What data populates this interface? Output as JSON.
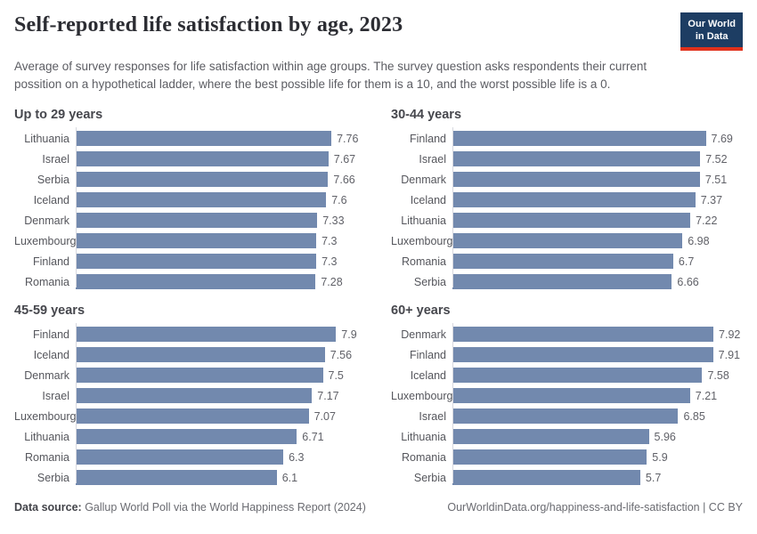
{
  "header": {
    "title": "Self-reported life satisfaction by age, 2023",
    "subtitle": "Average of survey responses for life satisfaction within age groups. The survey question asks respondents their current possition on a hypothetical ladder, where the best possible life for them is a 10, and the worst possible life is a 0.",
    "logo": {
      "line1": "Our World",
      "line2": "in Data"
    }
  },
  "chart_data": [
    {
      "type": "bar",
      "title": "Up to 29 years",
      "categories": [
        "Lithuania",
        "Israel",
        "Serbia",
        "Iceland",
        "Denmark",
        "Luxembourg",
        "Finland",
        "Romania"
      ],
      "values": [
        7.76,
        7.67,
        7.66,
        7.6,
        7.33,
        7.3,
        7.3,
        7.28
      ],
      "xlim": [
        0,
        8
      ],
      "color": "#7289ae",
      "orientation": "horizontal",
      "value_labels": true
    },
    {
      "type": "bar",
      "title": "30-44 years",
      "categories": [
        "Finland",
        "Israel",
        "Denmark",
        "Iceland",
        "Lithuania",
        "Luxembourg",
        "Romania",
        "Serbia"
      ],
      "values": [
        7.69,
        7.52,
        7.51,
        7.37,
        7.22,
        6.98,
        6.7,
        6.66
      ],
      "xlim": [
        0,
        8
      ],
      "color": "#7289ae",
      "orientation": "horizontal",
      "value_labels": true
    },
    {
      "type": "bar",
      "title": "45-59 years",
      "categories": [
        "Finland",
        "Iceland",
        "Denmark",
        "Israel",
        "Luxembourg",
        "Lithuania",
        "Romania",
        "Serbia"
      ],
      "values": [
        7.9,
        7.56,
        7.5,
        7.17,
        7.07,
        6.71,
        6.3,
        6.1
      ],
      "xlim": [
        0,
        8
      ],
      "color": "#7289ae",
      "orientation": "horizontal",
      "value_labels": true
    },
    {
      "type": "bar",
      "title": "60+ years",
      "categories": [
        "Denmark",
        "Finland",
        "Iceland",
        "Luxembourg",
        "Israel",
        "Lithuania",
        "Romania",
        "Serbia"
      ],
      "values": [
        7.92,
        7.91,
        7.58,
        7.21,
        6.85,
        5.96,
        5.9,
        5.7
      ],
      "xlim": [
        0,
        8
      ],
      "color": "#7289ae",
      "orientation": "horizontal",
      "value_labels": true
    }
  ],
  "footer": {
    "source_label": "Data source:",
    "source_value": " Gallup World Poll via the World Happiness Report (2024)",
    "attribution": "OurWorldinData.org/happiness-and-life-satisfaction | CC BY"
  },
  "colors": {
    "bar": "#7289ae",
    "axis_line": "#d7d8df",
    "logo_navy": "#1d3d63",
    "logo_red": "#e0311c"
  }
}
